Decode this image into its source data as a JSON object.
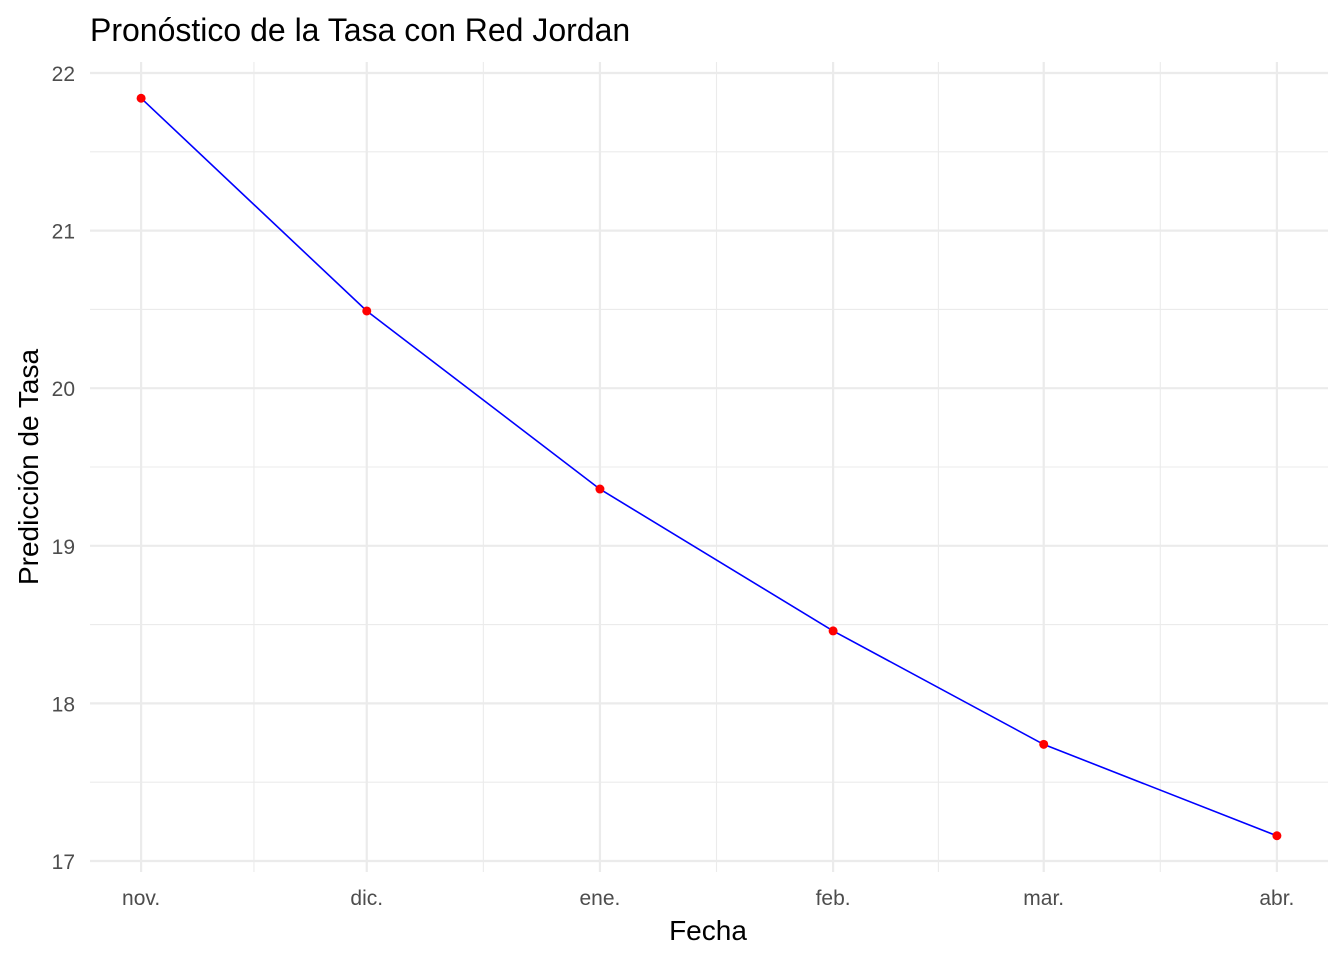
{
  "chart_data": {
    "type": "line",
    "title": "Pronóstico de la Tasa con Red Jordan",
    "xlabel": "Fecha",
    "ylabel": "Predicción de Tasa",
    "categories": [
      "nov.",
      "dic.",
      "ene.",
      "feb.",
      "mar.",
      "abr."
    ],
    "x_days": [
      0,
      30,
      61,
      92,
      120,
      151
    ],
    "series": [
      {
        "name": "Predicción",
        "values": [
          21.84,
          20.49,
          19.36,
          18.46,
          17.74,
          17.16
        ]
      }
    ],
    "ylim": [
      16.93,
      22.07
    ],
    "yticks": [
      17,
      18,
      19,
      20,
      21,
      22
    ],
    "grid": true,
    "legend": "none",
    "colors": {
      "line": "#0000FF",
      "points": "#FF0000",
      "grid": "#EBEBEB",
      "tick_text": "#4D4D4D"
    }
  }
}
